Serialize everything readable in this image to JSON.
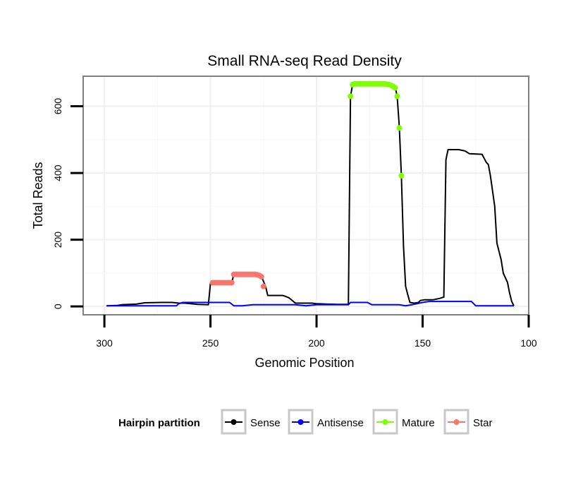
{
  "chart_data": {
    "type": "line",
    "title": "Small RNA-seq Read Density",
    "xlabel": "Genomic Position",
    "ylabel": "Total Reads",
    "xlim": [
      310,
      100
    ],
    "x_reversed": true,
    "ylim": [
      -25,
      690
    ],
    "xticks": [
      300,
      250,
      200,
      150,
      100
    ],
    "xtick_labels": [
      "300",
      "250",
      "200",
      "150",
      "100"
    ],
    "yticks": [
      0,
      200,
      400,
      600
    ],
    "ytick_labels": [
      "0",
      "200",
      "400",
      "600"
    ],
    "grid": true,
    "legend": {
      "title": "Hairpin partition",
      "position": "bottom",
      "entries": [
        {
          "label": "Sense",
          "color": "#000000"
        },
        {
          "label": "Antisense",
          "color": "#0000ff"
        },
        {
          "label": "Mature",
          "color": "#7fff00"
        },
        {
          "label": "Star",
          "color": "#f8766d"
        }
      ]
    },
    "series": [
      {
        "name": "Sense",
        "color": "#000000",
        "marker": "none",
        "points": [
          [
            299,
            2
          ],
          [
            294,
            3
          ],
          [
            292,
            5
          ],
          [
            285,
            7
          ],
          [
            281,
            11
          ],
          [
            273,
            12
          ],
          [
            268,
            12
          ],
          [
            265,
            10
          ],
          [
            262,
            10
          ],
          [
            259,
            8
          ],
          [
            256,
            6
          ],
          [
            251,
            5
          ],
          [
            250,
            71
          ],
          [
            243,
            71
          ],
          [
            240,
            71
          ],
          [
            239,
            96
          ],
          [
            233,
            96
          ],
          [
            228,
            96
          ],
          [
            226,
            90
          ],
          [
            224,
            60
          ],
          [
            223,
            33
          ],
          [
            219,
            33
          ],
          [
            216,
            33
          ],
          [
            215,
            31
          ],
          [
            213,
            26
          ],
          [
            210,
            10
          ],
          [
            202,
            10
          ],
          [
            200,
            8
          ],
          [
            199,
            8
          ],
          [
            195,
            7
          ],
          [
            190,
            6
          ],
          [
            185,
            6
          ],
          [
            184,
            630
          ],
          [
            183,
            665
          ],
          [
            178,
            667
          ],
          [
            170,
            667
          ],
          [
            165,
            665
          ],
          [
            163,
            660
          ],
          [
            162,
            630
          ],
          [
            161,
            540
          ],
          [
            160,
            390
          ],
          [
            159,
            180
          ],
          [
            158,
            60
          ],
          [
            157,
            35
          ],
          [
            156,
            12
          ],
          [
            154,
            10
          ],
          [
            152,
            12
          ],
          [
            151,
            18
          ],
          [
            149,
            20
          ],
          [
            145,
            20
          ],
          [
            142,
            24
          ],
          [
            140,
            28
          ],
          [
            139,
            440
          ],
          [
            138,
            470
          ],
          [
            133,
            470
          ],
          [
            130,
            466
          ],
          [
            128,
            458
          ],
          [
            122,
            456
          ],
          [
            121,
            444
          ],
          [
            120,
            432
          ],
          [
            119,
            425
          ],
          [
            118,
            390
          ],
          [
            116,
            300
          ],
          [
            115,
            190
          ],
          [
            113,
            140
          ],
          [
            112,
            100
          ],
          [
            110,
            72
          ],
          [
            109,
            40
          ],
          [
            108,
            15
          ],
          [
            107,
            2
          ]
        ]
      },
      {
        "name": "Antisense",
        "color": "#0000ff",
        "marker": "none",
        "points": [
          [
            299,
            2
          ],
          [
            266,
            2
          ],
          [
            265,
            8
          ],
          [
            263,
            12
          ],
          [
            241,
            12
          ],
          [
            239,
            2
          ],
          [
            235,
            2
          ],
          [
            230,
            5
          ],
          [
            210,
            5
          ],
          [
            205,
            2
          ],
          [
            200,
            5
          ],
          [
            185,
            5
          ],
          [
            184,
            12
          ],
          [
            176,
            12
          ],
          [
            174,
            5
          ],
          [
            161,
            5
          ],
          [
            158,
            2
          ],
          [
            155,
            5
          ],
          [
            150,
            12
          ],
          [
            147,
            15
          ],
          [
            127,
            15
          ],
          [
            125,
            2
          ],
          [
            107,
            2
          ]
        ]
      },
      {
        "name": "Mature",
        "color": "#7fff00",
        "marker": "dot",
        "points": [
          [
            184,
            630
          ],
          [
            183,
            665
          ],
          [
            182,
            667
          ],
          [
            181,
            667
          ],
          [
            180,
            667
          ],
          [
            179,
            667
          ],
          [
            178,
            667
          ],
          [
            177,
            667
          ],
          [
            176,
            667
          ],
          [
            175,
            667
          ],
          [
            174,
            667
          ],
          [
            173,
            667
          ],
          [
            172,
            667
          ],
          [
            171,
            667
          ],
          [
            170,
            667
          ],
          [
            169,
            667
          ],
          [
            168,
            667
          ],
          [
            167,
            666
          ],
          [
            166,
            665
          ],
          [
            165,
            663
          ],
          [
            164,
            660
          ],
          [
            163,
            655
          ],
          [
            162,
            630
          ],
          [
            161,
            535
          ],
          [
            160,
            392
          ]
        ]
      },
      {
        "name": "Star",
        "color": "#f8766d",
        "marker": "dot",
        "points": [
          [
            249,
            71
          ],
          [
            248,
            71
          ],
          [
            247,
            71
          ],
          [
            246,
            71
          ],
          [
            245,
            71
          ],
          [
            244,
            71
          ],
          [
            243,
            71
          ],
          [
            242,
            71
          ],
          [
            241,
            71
          ],
          [
            240,
            71
          ],
          [
            239,
            96
          ],
          [
            238,
            96
          ],
          [
            237,
            96
          ],
          [
            236,
            96
          ],
          [
            235,
            96
          ],
          [
            234,
            96
          ],
          [
            233,
            96
          ],
          [
            232,
            96
          ],
          [
            231,
            96
          ],
          [
            230,
            96
          ],
          [
            229,
            96
          ],
          [
            228,
            95
          ],
          [
            227,
            93
          ],
          [
            226,
            89
          ],
          [
            225,
            60
          ]
        ]
      }
    ]
  }
}
